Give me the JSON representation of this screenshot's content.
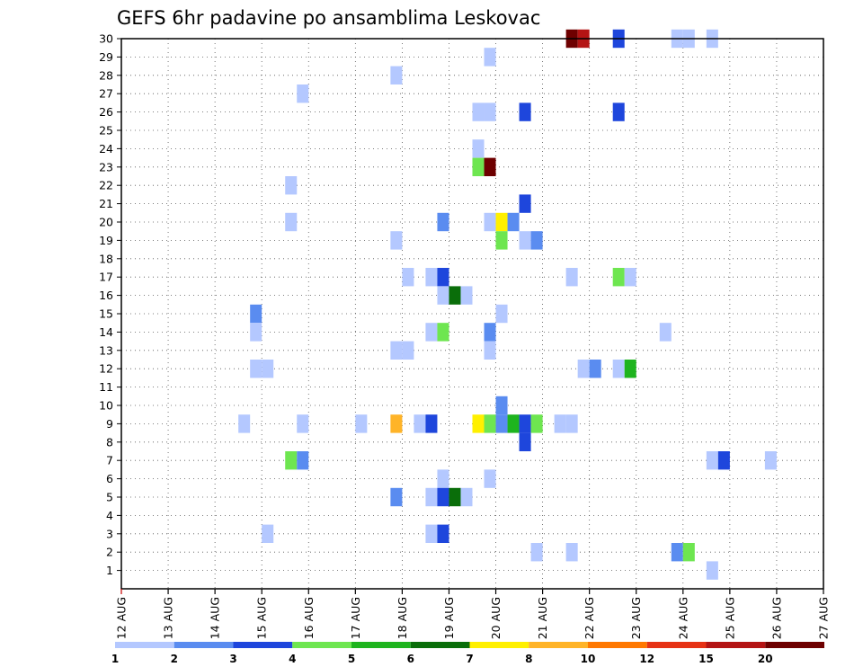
{
  "chart_data": {
    "type": "heatmap",
    "title": "GEFS 6hr padavine po ansamblima Leskovac",
    "xlabel": "",
    "ylabel": "",
    "x_tick_labels": [
      "12 AUG",
      "13 AUG",
      "14 AUG",
      "15 AUG",
      "16 AUG",
      "17 AUG",
      "18 AUG",
      "19 AUG",
      "20 AUG",
      "21 AUG",
      "22 AUG",
      "23 AUG",
      "24 AUG",
      "25 AUG",
      "26 AUG",
      "27 AUG"
    ],
    "y_tick_labels": [
      "1",
      "2",
      "3",
      "4",
      "5",
      "6",
      "7",
      "8",
      "9",
      "10",
      "11",
      "12",
      "13",
      "14",
      "15",
      "16",
      "17",
      "18",
      "19",
      "20",
      "21",
      "22",
      "23",
      "24",
      "25",
      "26",
      "27",
      "28",
      "29",
      "30"
    ],
    "x_range_days": [
      0,
      15
    ],
    "y_range": [
      0,
      30
    ],
    "grid": true,
    "colorbar": {
      "placement": "bottom",
      "labels": [
        "1",
        "2",
        "3",
        "4",
        "5",
        "6",
        "7",
        "8",
        "10",
        "12",
        "15",
        "20"
      ],
      "colors": [
        "#b4c8ff",
        "#5a8cf0",
        "#1e46dc",
        "#6ee650",
        "#1eb41e",
        "#0a6e0a",
        "#fff000",
        "#ffb428",
        "#ff7800",
        "#e63214",
        "#b41414",
        "#6e0000"
      ]
    },
    "x_unit": "days since 12 AUG 00Z, 6-hour steps",
    "cells": [
      {
        "x": 9.5,
        "y": 30,
        "v": 20
      },
      {
        "x": 9.75,
        "y": 30,
        "v": 15
      },
      {
        "x": 10.5,
        "y": 30,
        "v": 3
      },
      {
        "x": 11.75,
        "y": 30,
        "v": 1
      },
      {
        "x": 12,
        "y": 30,
        "v": 1
      },
      {
        "x": 12.5,
        "y": 30,
        "v": 1
      },
      {
        "x": 7.75,
        "y": 29,
        "v": 1
      },
      {
        "x": 5.75,
        "y": 28,
        "v": 1
      },
      {
        "x": 3.75,
        "y": 27,
        "v": 1
      },
      {
        "x": 7.5,
        "y": 26,
        "v": 1
      },
      {
        "x": 7.75,
        "y": 26,
        "v": 1
      },
      {
        "x": 8.5,
        "y": 26,
        "v": 3
      },
      {
        "x": 10.5,
        "y": 26,
        "v": 3
      },
      {
        "x": 7.5,
        "y": 24,
        "v": 1
      },
      {
        "x": 7.5,
        "y": 23,
        "v": 4
      },
      {
        "x": 7.75,
        "y": 23,
        "v": 20
      },
      {
        "x": 3.5,
        "y": 22,
        "v": 1
      },
      {
        "x": 8.5,
        "y": 21,
        "v": 3
      },
      {
        "x": 3.5,
        "y": 20,
        "v": 1
      },
      {
        "x": 6.75,
        "y": 20,
        "v": 2
      },
      {
        "x": 7.75,
        "y": 20,
        "v": 1
      },
      {
        "x": 8,
        "y": 20,
        "v": 7
      },
      {
        "x": 8.25,
        "y": 20,
        "v": 2
      },
      {
        "x": 5.75,
        "y": 19,
        "v": 1
      },
      {
        "x": 8,
        "y": 19,
        "v": 4
      },
      {
        "x": 8.5,
        "y": 19,
        "v": 1
      },
      {
        "x": 8.75,
        "y": 19,
        "v": 2
      },
      {
        "x": 6,
        "y": 17,
        "v": 1
      },
      {
        "x": 6.5,
        "y": 17,
        "v": 1
      },
      {
        "x": 6.75,
        "y": 17,
        "v": 3
      },
      {
        "x": 9.5,
        "y": 17,
        "v": 1
      },
      {
        "x": 10.5,
        "y": 17,
        "v": 4
      },
      {
        "x": 10.75,
        "y": 17,
        "v": 1
      },
      {
        "x": 6.75,
        "y": 16,
        "v": 1
      },
      {
        "x": 7,
        "y": 16,
        "v": 6
      },
      {
        "x": 7.25,
        "y": 16,
        "v": 1
      },
      {
        "x": 2.75,
        "y": 15,
        "v": 2
      },
      {
        "x": 8,
        "y": 15,
        "v": 1
      },
      {
        "x": 2.75,
        "y": 14,
        "v": 1
      },
      {
        "x": 6.5,
        "y": 14,
        "v": 1
      },
      {
        "x": 6.75,
        "y": 14,
        "v": 4
      },
      {
        "x": 7.75,
        "y": 14,
        "v": 2
      },
      {
        "x": 11.5,
        "y": 14,
        "v": 1
      },
      {
        "x": 5.75,
        "y": 13,
        "v": 1
      },
      {
        "x": 6,
        "y": 13,
        "v": 1
      },
      {
        "x": 7.75,
        "y": 13,
        "v": 1
      },
      {
        "x": 2.75,
        "y": 12,
        "v": 1
      },
      {
        "x": 3,
        "y": 12,
        "v": 1
      },
      {
        "x": 9.75,
        "y": 12,
        "v": 1
      },
      {
        "x": 10,
        "y": 12,
        "v": 2
      },
      {
        "x": 10.5,
        "y": 12,
        "v": 1
      },
      {
        "x": 10.75,
        "y": 12,
        "v": 5
      },
      {
        "x": 8,
        "y": 10,
        "v": 2
      },
      {
        "x": 2.5,
        "y": 9,
        "v": 1
      },
      {
        "x": 3.75,
        "y": 9,
        "v": 1
      },
      {
        "x": 5,
        "y": 9,
        "v": 1
      },
      {
        "x": 5.75,
        "y": 9,
        "v": 9
      },
      {
        "x": 6.25,
        "y": 9,
        "v": 1
      },
      {
        "x": 6.5,
        "y": 9,
        "v": 3
      },
      {
        "x": 7.5,
        "y": 9,
        "v": 7
      },
      {
        "x": 7.75,
        "y": 9,
        "v": 4
      },
      {
        "x": 8,
        "y": 9,
        "v": 2
      },
      {
        "x": 8.25,
        "y": 9,
        "v": 5
      },
      {
        "x": 8.5,
        "y": 9,
        "v": 3
      },
      {
        "x": 8.75,
        "y": 9,
        "v": 4
      },
      {
        "x": 9.25,
        "y": 9,
        "v": 1
      },
      {
        "x": 9.5,
        "y": 9,
        "v": 1
      },
      {
        "x": 8.5,
        "y": 8,
        "v": 3
      },
      {
        "x": 3.5,
        "y": 7,
        "v": 4
      },
      {
        "x": 3.75,
        "y": 7,
        "v": 2
      },
      {
        "x": 12.5,
        "y": 7,
        "v": 1
      },
      {
        "x": 12.75,
        "y": 7,
        "v": 3
      },
      {
        "x": 13.75,
        "y": 7,
        "v": 1
      },
      {
        "x": 6.75,
        "y": 6,
        "v": 1
      },
      {
        "x": 7.75,
        "y": 6,
        "v": 1
      },
      {
        "x": 5.75,
        "y": 5,
        "v": 2
      },
      {
        "x": 6.5,
        "y": 5,
        "v": 1
      },
      {
        "x": 6.75,
        "y": 5,
        "v": 3
      },
      {
        "x": 7,
        "y": 5,
        "v": 6
      },
      {
        "x": 7.25,
        "y": 5,
        "v": 1
      },
      {
        "x": 3,
        "y": 3,
        "v": 1
      },
      {
        "x": 6.5,
        "y": 3,
        "v": 1
      },
      {
        "x": 6.75,
        "y": 3,
        "v": 3
      },
      {
        "x": 8.75,
        "y": 2,
        "v": 1
      },
      {
        "x": 9.5,
        "y": 2,
        "v": 1
      },
      {
        "x": 11.75,
        "y": 2,
        "v": 2
      },
      {
        "x": 12,
        "y": 2,
        "v": 4
      },
      {
        "x": 12.5,
        "y": 1,
        "v": 1
      }
    ]
  }
}
